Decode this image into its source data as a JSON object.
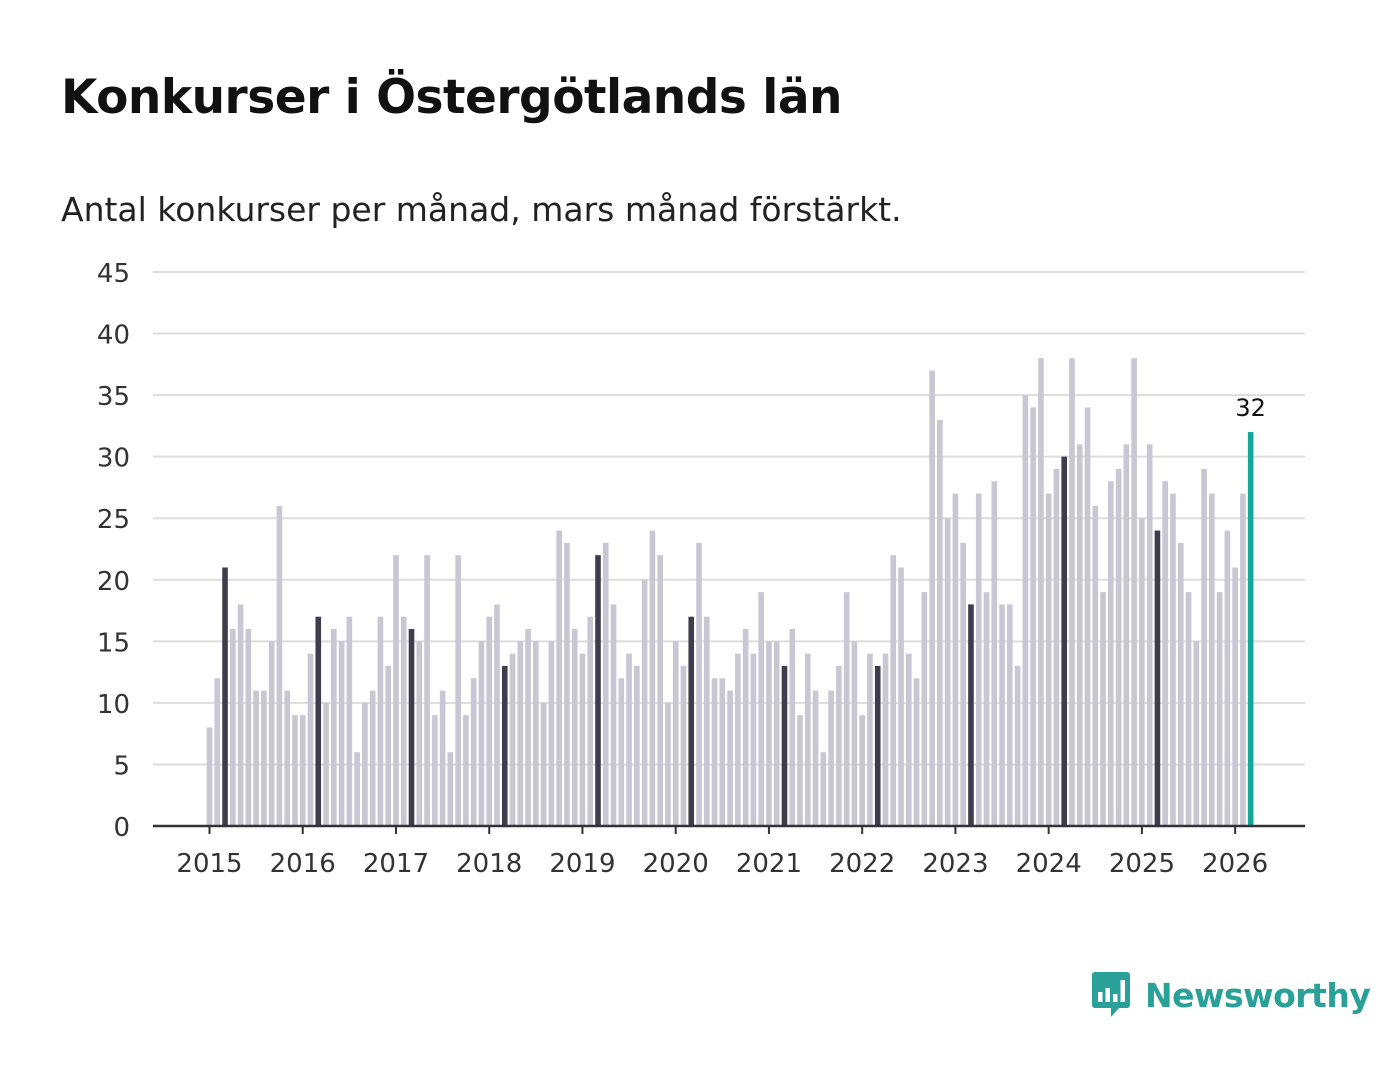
{
  "title": "Konkurser i Östergötlands län",
  "subtitle": "Antal konkurser per månad, mars månad förstärkt.",
  "brand": {
    "name": "Newsworthy",
    "color": "#2aa198",
    "icon": "chart-logo-icon"
  },
  "colors": {
    "bar": "#c8c7d3",
    "highlight": "#3f3d4d",
    "latest": "#14a89b",
    "grid": "#dddddd",
    "axis": "#333333"
  },
  "chart_data": {
    "type": "bar",
    "title": "Konkurser i Östergötlands län",
    "subtitle": "Antal konkurser per månad, mars månad förstärkt.",
    "xlabel": "",
    "ylabel": "",
    "ylim": [
      0,
      45
    ],
    "yticks": [
      0,
      5,
      10,
      15,
      20,
      25,
      30,
      35,
      40,
      45
    ],
    "x_tick_labels": [
      "2015",
      "2016",
      "2017",
      "2018",
      "2019",
      "2020",
      "2021",
      "2022",
      "2023",
      "2024",
      "2025",
      "2026"
    ],
    "start": "2015-01",
    "highlight_month": "mars",
    "grid": true,
    "annotations": [
      {
        "month": "2026-03",
        "label": "32"
      }
    ],
    "values": [
      8,
      12,
      21,
      16,
      18,
      16,
      11,
      11,
      15,
      26,
      11,
      9,
      9,
      14,
      17,
      10,
      16,
      15,
      17,
      6,
      10,
      11,
      17,
      13,
      22,
      17,
      16,
      15,
      22,
      9,
      11,
      6,
      22,
      9,
      12,
      15,
      17,
      18,
      13,
      14,
      15,
      16,
      15,
      10,
      15,
      24,
      23,
      16,
      14,
      17,
      22,
      23,
      18,
      12,
      14,
      13,
      20,
      24,
      22,
      10,
      15,
      13,
      17,
      23,
      17,
      12,
      12,
      11,
      14,
      16,
      14,
      19,
      15,
      15,
      13,
      16,
      9,
      14,
      11,
      6,
      11,
      13,
      19,
      15,
      9,
      14,
      13,
      14,
      22,
      21,
      14,
      12,
      19,
      37,
      33,
      25,
      27,
      23,
      18,
      27,
      19,
      28,
      18,
      18,
      13,
      35,
      34,
      38,
      27,
      29,
      30,
      38,
      31,
      34,
      26,
      19,
      28,
      29,
      31,
      38,
      25,
      31,
      24,
      28,
      27,
      23,
      19,
      15,
      29,
      27,
      19,
      24,
      21,
      27,
      32
    ]
  }
}
